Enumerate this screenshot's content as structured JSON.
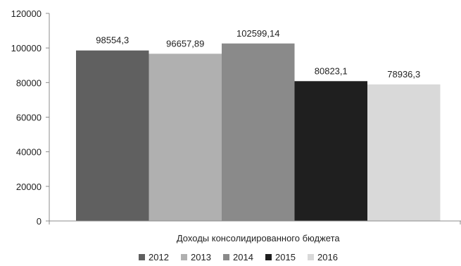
{
  "chart_data": {
    "type": "bar",
    "title": "",
    "xlabel": "Доходы консолидированного бюджета",
    "ylabel": "",
    "categories": [
      "Доходы консолидированного бюджета"
    ],
    "series": [
      {
        "name": "2012",
        "values": [
          98554.3
        ],
        "label": "98554,3",
        "color": "#606060"
      },
      {
        "name": "2013",
        "values": [
          96657.89
        ],
        "label": "96657,89",
        "color": "#b0b0b0"
      },
      {
        "name": "2014",
        "values": [
          102599.14
        ],
        "label": "102599,14",
        "color": "#8a8a8a"
      },
      {
        "name": "2015",
        "values": [
          80823.1
        ],
        "label": "80823,1",
        "color": "#1f1f1f"
      },
      {
        "name": "2016",
        "values": [
          78936.3
        ],
        "label": "78936,3",
        "color": "#d9d9d9"
      }
    ],
    "ylim": [
      0,
      120000
    ],
    "yticks": [
      "0",
      "20000",
      "40000",
      "60000",
      "80000",
      "100000",
      "120000"
    ],
    "grid": false,
    "legend_position": "bottom"
  }
}
